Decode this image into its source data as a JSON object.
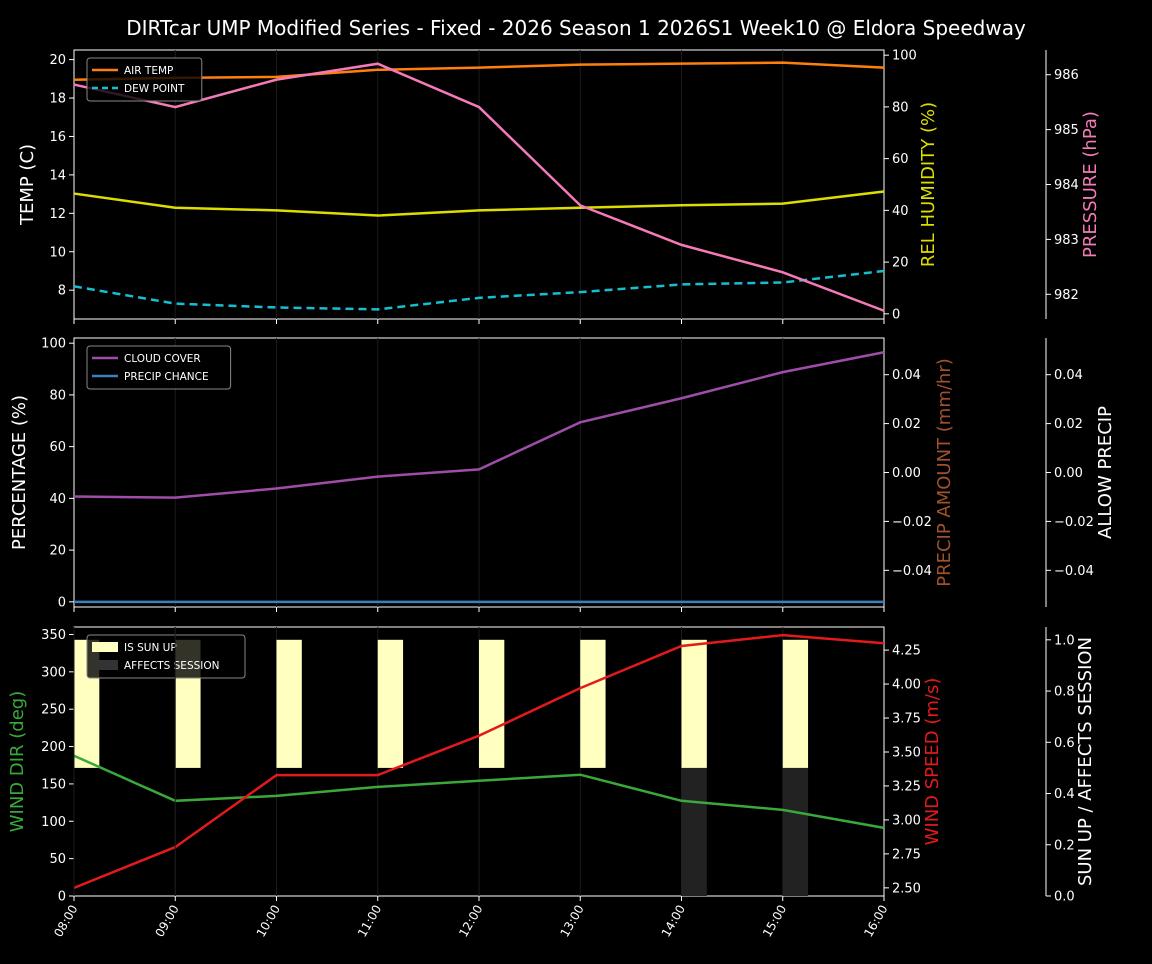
{
  "title": "DIRTcar UMP Modified Series - Fixed - 2026 Season 1 2026S1 Week10 @ Eldora Speedway",
  "colors": {
    "air_temp": "#ff7f0e",
    "dew_point": "#17becf",
    "humidity": "#dddd00",
    "pressure": "#f47ab8",
    "cloud": "#9e4ea8",
    "precip_chance": "#3a7fc0",
    "precip_amount": "#a0522d",
    "wind_dir": "#3aa83a",
    "wind_speed": "#e31a1c",
    "sun_up": "#ffffc0",
    "affects": "#222222"
  },
  "chart_data": [
    {
      "type": "line",
      "x": [
        "08:00",
        "09:00",
        "10:00",
        "11:00",
        "12:00",
        "13:00",
        "14:00",
        "15:00",
        "16:00"
      ],
      "ylabel": "TEMP (C)",
      "ylim": [
        6.5,
        20.5
      ],
      "yticks": [
        8,
        10,
        12,
        14,
        16,
        18,
        20
      ],
      "y2label": "REL HUMIDITY (%)",
      "y2lim": [
        -2,
        102
      ],
      "y2ticks": [
        0,
        20,
        40,
        60,
        80,
        100
      ],
      "y3label": "PRESSURE (hPa)",
      "y3lim": [
        981.55,
        986.45
      ],
      "y3ticks": [
        982,
        983,
        984,
        985,
        986
      ],
      "legend": "top-left",
      "series": [
        {
          "name": "AIR TEMP",
          "axis": "y",
          "values": [
            18.95,
            19.05,
            19.1,
            19.47,
            19.58,
            19.74,
            19.79,
            19.84,
            19.58
          ]
        },
        {
          "name": "DEW POINT",
          "axis": "y",
          "dashed": true,
          "values": [
            8.2,
            7.3,
            7.1,
            7.0,
            7.6,
            7.9,
            8.3,
            8.4,
            9.0
          ]
        },
        {
          "axis": "y2",
          "values": [
            46.5,
            41,
            40,
            38,
            40,
            41,
            42,
            42.6,
            47.3
          ]
        },
        {
          "axis": "y3",
          "values": [
            985.82,
            985.41,
            985.91,
            986.2,
            985.41,
            983.62,
            982.9,
            982.4,
            981.7
          ]
        }
      ]
    },
    {
      "type": "line",
      "x": [
        "08:00",
        "09:00",
        "10:00",
        "11:00",
        "12:00",
        "13:00",
        "14:00",
        "15:00",
        "16:00"
      ],
      "ylabel": "PERCENTAGE (%)",
      "ylim": [
        -2,
        102
      ],
      "yticks": [
        0,
        20,
        40,
        60,
        80,
        100
      ],
      "y2label": "PRECIP AMOUNT (mm/hr)",
      "y2lim": [
        -0.055,
        0.055
      ],
      "y2ticks": [
        "−0.04",
        "−0.02",
        "0.00",
        "0.02",
        "0.04"
      ],
      "y3label": "ALLOW PRECIP",
      "y3lim": [
        -0.055,
        0.055
      ],
      "y3ticks": [
        "−0.04",
        "−0.02",
        "0.00",
        "0.02",
        "0.04"
      ],
      "legend": "top-left",
      "series": [
        {
          "name": "CLOUD COVER",
          "values": [
            40.7,
            40.3,
            43.8,
            48.4,
            51.2,
            69.4,
            78.7,
            88.8,
            96.5
          ]
        },
        {
          "name": "PRECIP CHANCE",
          "values": [
            0,
            0,
            0,
            0,
            0,
            0,
            0,
            0,
            0
          ]
        }
      ]
    },
    {
      "type": "line",
      "x": [
        "08:00",
        "09:00",
        "10:00",
        "11:00",
        "12:00",
        "13:00",
        "14:00",
        "15:00",
        "16:00"
      ],
      "ylabel": "WIND DIR (deg)",
      "ylim": [
        0,
        360
      ],
      "yticks": [
        0,
        50,
        100,
        150,
        200,
        250,
        300,
        350
      ],
      "y2label": "WIND SPEED (m/s)",
      "y2lim": [
        2.44,
        4.42
      ],
      "y2ticks": [
        "2.50",
        "2.75",
        "3.00",
        "3.25",
        "3.50",
        "3.75",
        "4.00",
        "4.25"
      ],
      "y3label": "SUN UP / AFFECTS SESSION",
      "y3lim": [
        0,
        1.05
      ],
      "y3ticks": [
        "0.0",
        "0.2",
        "0.4",
        "0.6",
        "0.8",
        "1.0"
      ],
      "legend": "top-left",
      "series": [
        {
          "axis": "y",
          "values": [
            187.7,
            127.4,
            134,
            146,
            154.2,
            162.3,
            127.4,
            115.3,
            91.2
          ]
        },
        {
          "axis": "y2",
          "values": [
            2.5,
            2.8,
            3.33,
            3.33,
            3.62,
            3.97,
            4.28,
            4.36,
            4.3
          ]
        }
      ],
      "bars": [
        {
          "name": "IS SUN UP",
          "values": [
            1,
            1,
            1,
            1,
            1,
            1,
            1,
            1
          ]
        },
        {
          "name": "AFFECTS SESSION",
          "values": [
            0,
            0,
            0,
            0,
            0,
            0,
            1,
            1
          ]
        }
      ]
    }
  ]
}
